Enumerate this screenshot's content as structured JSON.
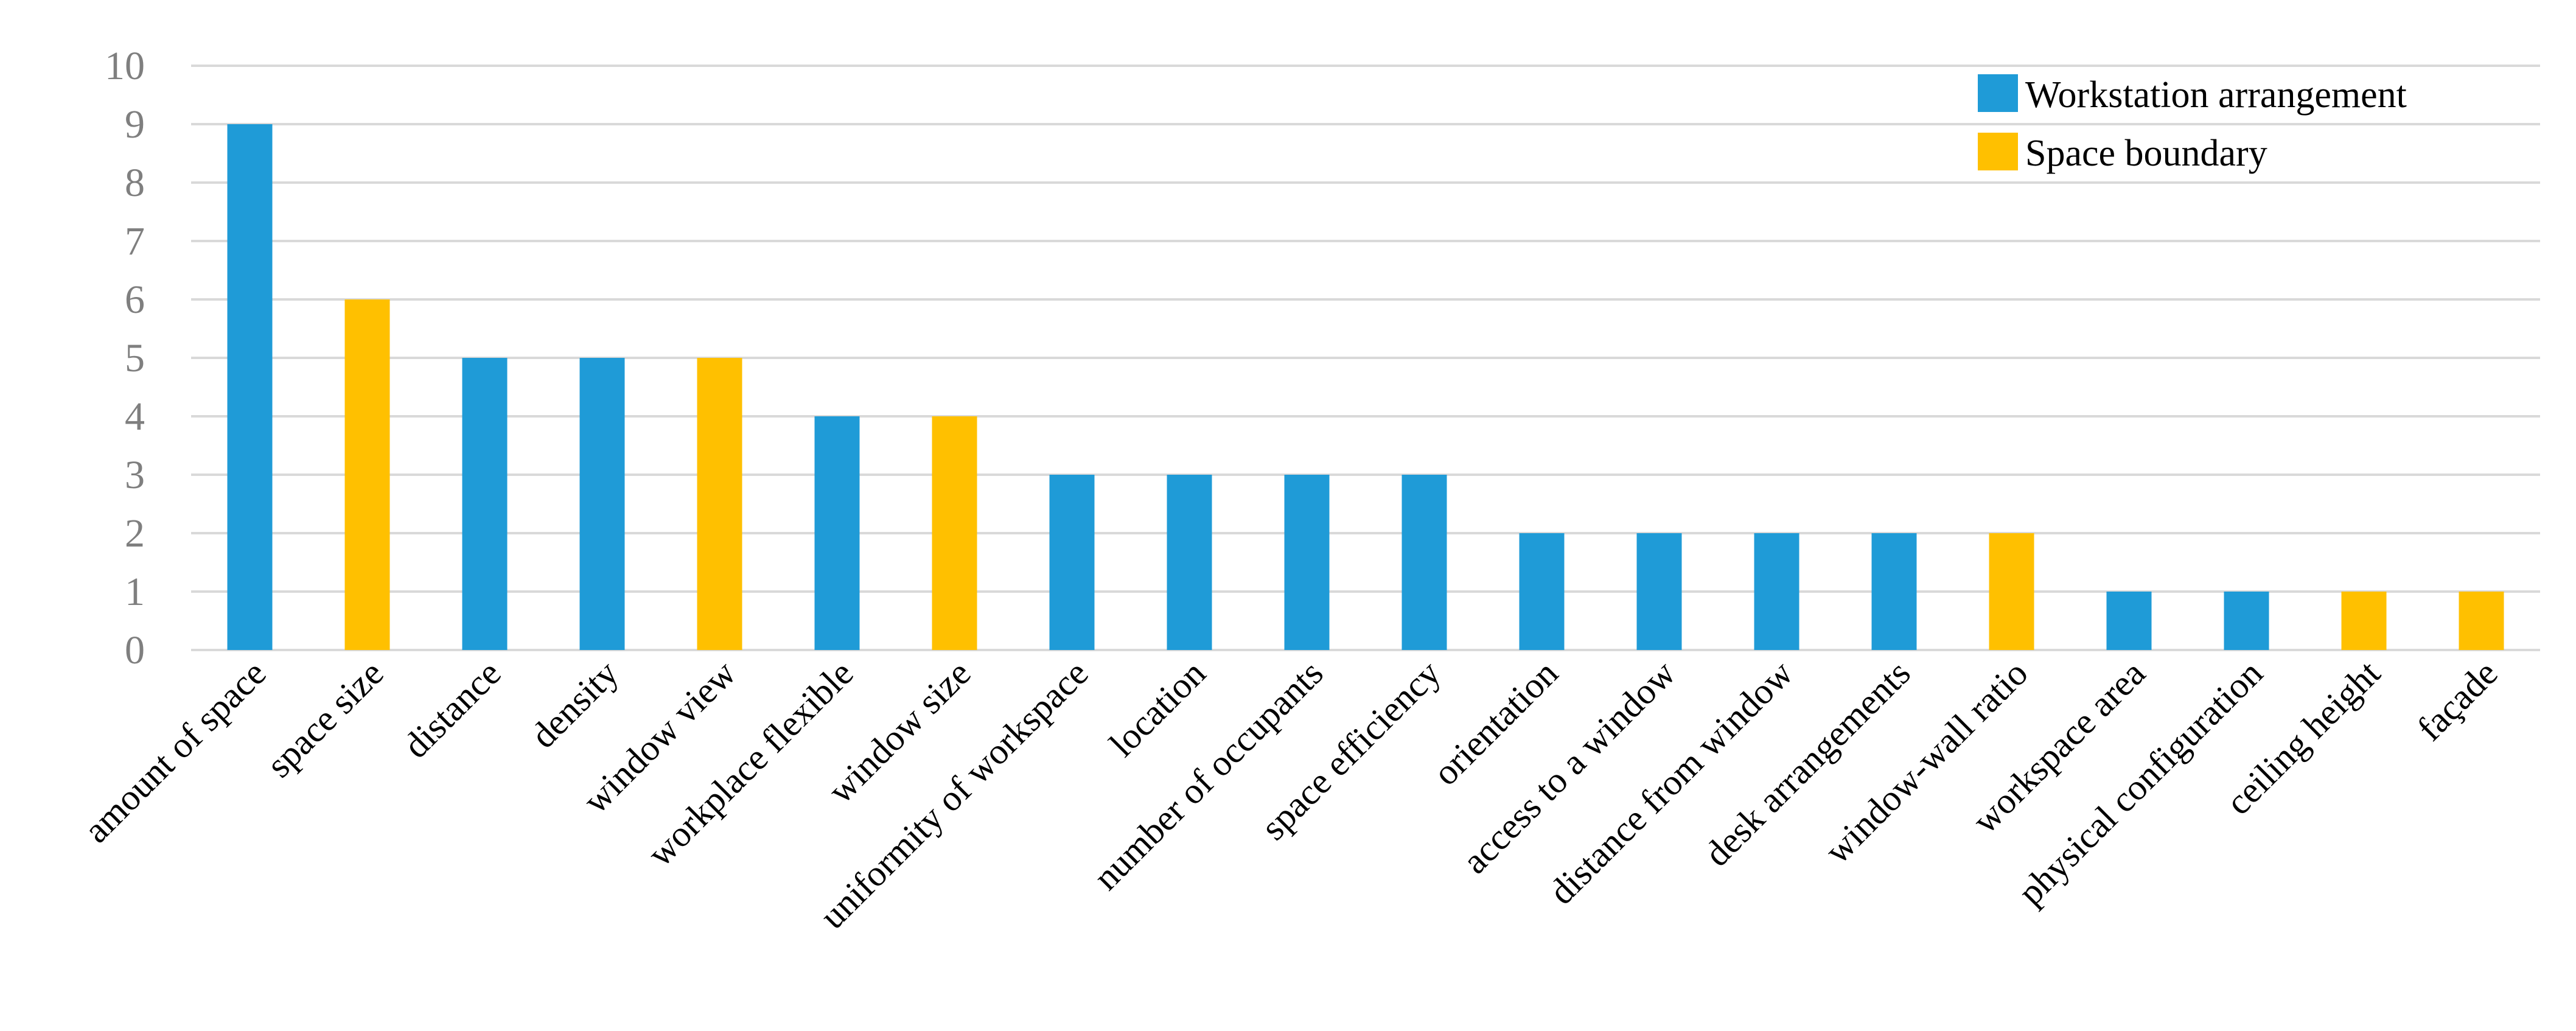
{
  "chart_data": {
    "type": "bar",
    "title": "",
    "xlabel": "",
    "ylabel": "",
    "ylim": [
      0,
      10
    ],
    "yticks": [
      0,
      1,
      2,
      3,
      4,
      5,
      6,
      7,
      8,
      9,
      10
    ],
    "grid": true,
    "legend_placement": "top-right",
    "categories": [
      "amount of space",
      "space size",
      "distance",
      "density",
      "window view",
      "workplace flexible",
      "window size",
      "uniformity of workspace",
      "location",
      "number of occupants",
      "space efficiency",
      "orientation",
      "access to a window",
      "distance from window",
      "desk arrangements",
      "window-wall ratio",
      "workspace area",
      "physical configuration",
      "ceiling height",
      "façade"
    ],
    "values": [
      9,
      6,
      5,
      5,
      5,
      4,
      4,
      3,
      3,
      3,
      3,
      2,
      2,
      2,
      2,
      2,
      1,
      1,
      1,
      1
    ],
    "groups": [
      "Workstation arrangement",
      "Space boundary",
      "Workstation arrangement",
      "Workstation arrangement",
      "Space boundary",
      "Workstation arrangement",
      "Space boundary",
      "Workstation arrangement",
      "Workstation arrangement",
      "Workstation arrangement",
      "Workstation arrangement",
      "Workstation arrangement",
      "Workstation arrangement",
      "Workstation arrangement",
      "Workstation arrangement",
      "Space boundary",
      "Workstation arrangement",
      "Workstation arrangement",
      "Space boundary",
      "Space boundary"
    ],
    "legend": [
      {
        "name": "Workstation arrangement",
        "color": "#1f9bd7"
      },
      {
        "name": "Space boundary",
        "color": "#ffc000"
      }
    ]
  }
}
